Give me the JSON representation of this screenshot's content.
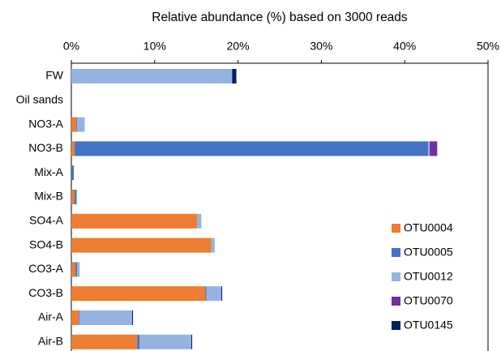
{
  "chart_data": {
    "type": "stacked-barh",
    "title": "Relative abundance (%) based on 3000 reads",
    "categories": [
      "FW",
      "Oil sands",
      "NO3-A",
      "NO3-B",
      "Mix-A",
      "Mix-B",
      "SO4-A",
      "SO4-B",
      "CO3-A",
      "CO3-B",
      "Air-A",
      "Air-B"
    ],
    "series": [
      {
        "name": "OTU0004",
        "color": "#ed7d31",
        "values": [
          0,
          0,
          0.6,
          0.4,
          0,
          0.4,
          15.1,
          16.8,
          0.5,
          16.1,
          0.9,
          7.9
        ]
      },
      {
        "name": "OTU0005",
        "color": "#4472c4",
        "values": [
          0,
          0,
          0.1,
          42.4,
          0.3,
          0.2,
          0,
          0,
          0.2,
          0.1,
          0.1,
          0.3
        ]
      },
      {
        "name": "OTU0012",
        "color": "#95b3e0",
        "values": [
          19.3,
          0,
          0.9,
          0.2,
          0,
          0.1,
          0.5,
          0.4,
          0.3,
          1.8,
          6.3,
          6.2
        ]
      },
      {
        "name": "OTU0070",
        "color": "#7030a0",
        "values": [
          0,
          0,
          0,
          0.9,
          0,
          0,
          0,
          0,
          0,
          0,
          0,
          0
        ]
      },
      {
        "name": "OTU0145",
        "color": "#002060",
        "values": [
          0.5,
          0,
          0,
          0,
          0,
          0,
          0,
          0,
          0,
          0.1,
          0.1,
          0.1
        ]
      }
    ],
    "xlim": [
      0,
      50
    ],
    "xticks": [
      {
        "value": 0,
        "label": "0%"
      },
      {
        "value": 10,
        "label": "10%"
      },
      {
        "value": 20,
        "label": "20%"
      },
      {
        "value": 30,
        "label": "30%"
      },
      {
        "value": 40,
        "label": "40%"
      },
      {
        "value": 50,
        "label": "50%"
      }
    ],
    "legend": "lower right"
  }
}
